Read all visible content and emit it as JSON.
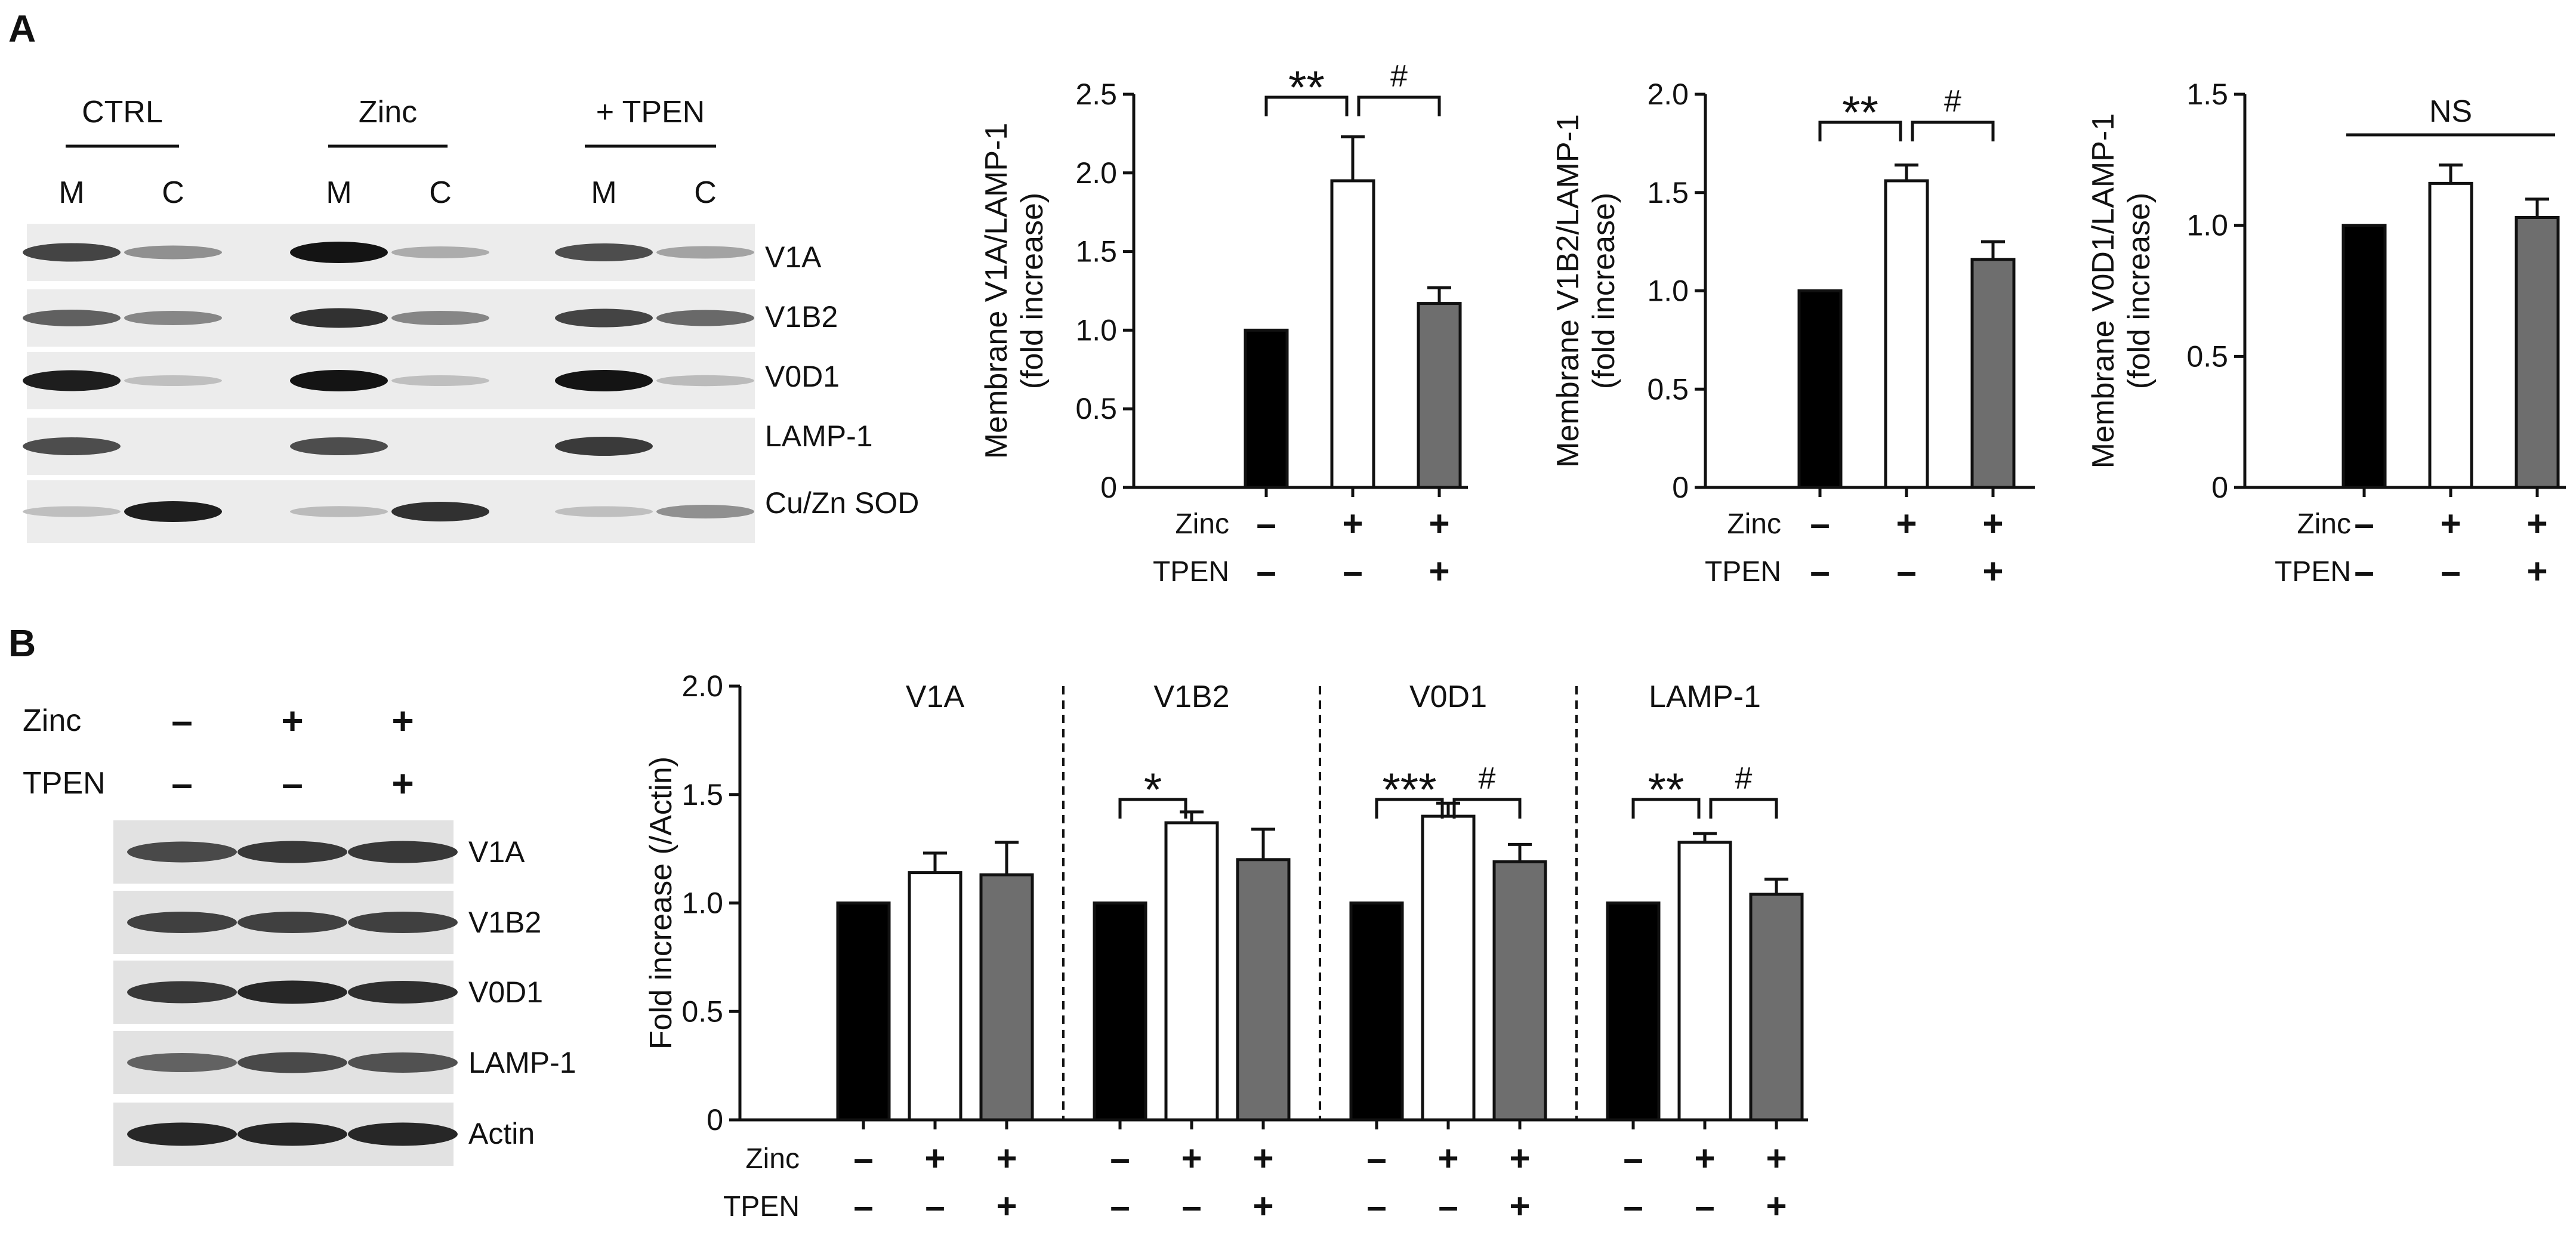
{
  "panels": {
    "a": "A",
    "b": "B"
  },
  "blot_a": {
    "groups": [
      "CTRL",
      "Zinc",
      "+ TPEN"
    ],
    "fractions": [
      "M",
      "C",
      "M",
      "C",
      "M",
      "C"
    ],
    "bands": [
      "V1A",
      "V1B2",
      "V0D1",
      "LAMP-1",
      "Cu/Zn SOD"
    ],
    "intensity": [
      [
        0.75,
        0.35,
        1.0,
        0.2,
        0.7,
        0.25
      ],
      [
        0.6,
        0.4,
        0.85,
        0.4,
        0.75,
        0.55
      ],
      [
        0.95,
        0.1,
        1.0,
        0.1,
        1.0,
        0.12
      ],
      [
        0.7,
        0.0,
        0.7,
        0.0,
        0.8,
        0.0
      ],
      [
        0.1,
        0.95,
        0.12,
        0.85,
        0.1,
        0.35
      ]
    ]
  },
  "blot_b": {
    "row_labels": [
      "Zinc",
      "TPEN"
    ],
    "conditions": [
      [
        "–",
        "+",
        "+"
      ],
      [
        "–",
        "–",
        "+"
      ]
    ],
    "bands": [
      "V1A",
      "V1B2",
      "V0D1",
      "LAMP-1",
      "Actin"
    ],
    "intensity": [
      [
        0.75,
        0.85,
        0.85
      ],
      [
        0.8,
        0.8,
        0.8
      ],
      [
        0.85,
        0.95,
        0.9
      ],
      [
        0.6,
        0.75,
        0.7
      ],
      [
        0.95,
        0.95,
        0.95
      ]
    ]
  },
  "colors": {
    "ctrl": "#000000",
    "zinc": "#ffffff",
    "tpen": "#6e6e6e"
  },
  "chart_data": [
    {
      "type": "bar",
      "title": "",
      "ylabel": "Membrane V1A/LAMP-1",
      "ylabel2": "(fold increase)",
      "categories": [
        "CTRL",
        "Zinc",
        "Zinc+TPEN"
      ],
      "values": [
        1.0,
        1.95,
        1.17
      ],
      "errors": [
        0,
        0.28,
        0.1
      ],
      "ylim": [
        0,
        2.5
      ],
      "yticks": [
        "0",
        "0.5",
        "1.0",
        "1.5",
        "2.0",
        "2.5"
      ],
      "treatment_labels": [
        "Zinc",
        "TPEN"
      ],
      "treatment_signs": [
        [
          "–",
          "+",
          "+"
        ],
        [
          "–",
          "–",
          "+"
        ]
      ],
      "significance": [
        {
          "from": 0,
          "to": 1,
          "label": "**"
        },
        {
          "from": 1,
          "to": 2,
          "label": "#"
        }
      ]
    },
    {
      "type": "bar",
      "title": "",
      "ylabel": "Membrane V1B2/LAMP-1",
      "ylabel2": "(fold increase)",
      "categories": [
        "CTRL",
        "Zinc",
        "Zinc+TPEN"
      ],
      "values": [
        1.0,
        1.56,
        1.16
      ],
      "errors": [
        0,
        0.08,
        0.09
      ],
      "ylim": [
        0,
        2.0
      ],
      "yticks": [
        "0",
        "0.5",
        "1.0",
        "1.5",
        "2.0"
      ],
      "treatment_labels": [
        "Zinc",
        "TPEN"
      ],
      "treatment_signs": [
        [
          "–",
          "+",
          "+"
        ],
        [
          "–",
          "–",
          "+"
        ]
      ],
      "significance": [
        {
          "from": 0,
          "to": 1,
          "label": "**"
        },
        {
          "from": 1,
          "to": 2,
          "label": "#"
        }
      ]
    },
    {
      "type": "bar",
      "title": "",
      "ylabel": "Membrane V0D1/LAMP-1",
      "ylabel2": "(fold increase)",
      "categories": [
        "CTRL",
        "Zinc",
        "Zinc+TPEN"
      ],
      "values": [
        1.0,
        1.16,
        1.03
      ],
      "errors": [
        0,
        0.07,
        0.07
      ],
      "ylim": [
        0,
        1.5
      ],
      "yticks": [
        "0",
        "0.5",
        "1.0",
        "1.5"
      ],
      "treatment_labels": [
        "Zinc",
        "TPEN"
      ],
      "treatment_signs": [
        [
          "–",
          "+",
          "+"
        ],
        [
          "–",
          "–",
          "+"
        ]
      ],
      "ns_label": "NS"
    },
    {
      "type": "bar",
      "title": "",
      "ylabel": "Fold increase (/Actin)",
      "ylim": [
        0,
        2.0
      ],
      "yticks": [
        "0",
        "0.5",
        "1.0",
        "1.5",
        "2.0"
      ],
      "treatment_labels": [
        "Zinc",
        "TPEN"
      ],
      "treatment_signs": [
        [
          "–",
          "+",
          "+"
        ],
        [
          "–",
          "–",
          "+"
        ]
      ],
      "groups": [
        {
          "name": "V1A",
          "values": [
            1.0,
            1.14,
            1.13
          ],
          "errors": [
            0,
            0.09,
            0.15
          ],
          "significance": []
        },
        {
          "name": "V1B2",
          "values": [
            1.0,
            1.37,
            1.2
          ],
          "errors": [
            0,
            0.05,
            0.14
          ],
          "significance": [
            {
              "from": 0,
              "to": 1,
              "label": "*"
            }
          ]
        },
        {
          "name": "V0D1",
          "values": [
            1.0,
            1.4,
            1.19
          ],
          "errors": [
            0,
            0.06,
            0.08
          ],
          "significance": [
            {
              "from": 0,
              "to": 1,
              "label": "***"
            },
            {
              "from": 1,
              "to": 2,
              "label": "#"
            }
          ]
        },
        {
          "name": "LAMP-1",
          "values": [
            1.0,
            1.28,
            1.04
          ],
          "errors": [
            0,
            0.04,
            0.07
          ],
          "significance": [
            {
              "from": 0,
              "to": 1,
              "label": "**"
            },
            {
              "from": 1,
              "to": 2,
              "label": "#"
            }
          ]
        }
      ]
    }
  ]
}
